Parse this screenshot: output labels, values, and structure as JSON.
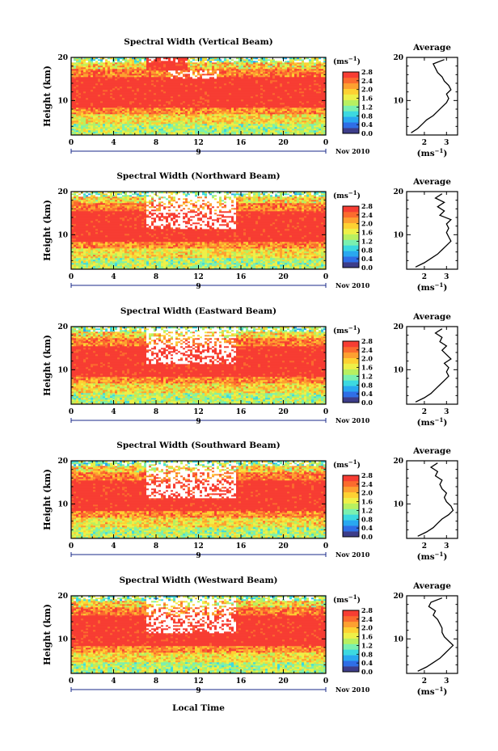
{
  "chart_data": {
    "type": "heatmap",
    "colors": {
      "palette": [
        "#3d3d8a",
        "#2f6ee6",
        "#29a8f0",
        "#3cd9e0",
        "#7af0b0",
        "#b8f060",
        "#eef048",
        "#fdd132",
        "#fda030",
        "#fb6b2e",
        "#f73d33"
      ],
      "average_line": "#000000"
    },
    "colorbar": {
      "unit": "(ms",
      "unit_exp": "−1",
      "unit_close": ")",
      "ticks": [
        "2.8",
        "2.4",
        "2.0",
        "1.6",
        "1.2",
        "0.8",
        "0.4",
        "0.0"
      ],
      "range": [
        0.0,
        2.8
      ]
    },
    "x_axis": {
      "ticks": [
        "0",
        "4",
        "8",
        "12",
        "16",
        "20",
        "0"
      ],
      "range": [
        0,
        24
      ],
      "day_label": "9",
      "date_label": "Nov 2010",
      "xlabel": "Local Time"
    },
    "y_axis": {
      "label": "Height (km)",
      "ticks": [
        "20",
        "10"
      ],
      "range": [
        2,
        20
      ]
    },
    "average_axis": {
      "ticks": [
        "2",
        "3"
      ],
      "unit": "(ms",
      "unit_exp": "−1",
      "unit_close": ")"
    },
    "panels": [
      {
        "title": "Spectral Width (Vertical Beam)",
        "average_title": "Average",
        "average_profile": {
          "height_km": [
            2.5,
            3.5,
            4.5,
            5.5,
            6.5,
            7.5,
            8.5,
            9.5,
            10.5,
            11.5,
            12.5,
            13.5,
            14.5,
            15.5,
            16.5,
            17.5,
            18.5,
            19.5
          ],
          "value": [
            1.4,
            1.7,
            1.9,
            2.1,
            2.4,
            2.6,
            2.8,
            3.0,
            3.1,
            3.0,
            3.2,
            3.1,
            2.9,
            2.8,
            2.6,
            2.5,
            2.4,
            2.9
          ]
        }
      },
      {
        "title": "Spectral Width (Northward Beam)",
        "average_title": "Average",
        "average_profile": {
          "height_km": [
            2.5,
            3.5,
            4.5,
            5.5,
            6.5,
            7.5,
            8.5,
            9.5,
            10.5,
            11.5,
            12.5,
            13.5,
            14.5,
            15.5,
            16.5,
            17.5,
            18.5,
            19.5
          ],
          "value": [
            1.6,
            2.0,
            2.3,
            2.6,
            2.8,
            3.0,
            3.2,
            3.1,
            3.0,
            3.1,
            3.0,
            3.2,
            2.7,
            2.9,
            2.6,
            2.9,
            2.5,
            2.8
          ]
        }
      },
      {
        "title": "Spectral Width (Eastward Beam)",
        "average_title": "Average",
        "average_profile": {
          "height_km": [
            2.5,
            3.5,
            4.5,
            5.5,
            6.5,
            7.5,
            8.5,
            9.5,
            10.5,
            11.5,
            12.5,
            13.5,
            14.5,
            15.5,
            16.5,
            17.5,
            18.5,
            19.5
          ],
          "value": [
            1.6,
            2.0,
            2.3,
            2.5,
            2.7,
            2.9,
            3.1,
            3.0,
            3.1,
            2.9,
            3.2,
            3.0,
            2.8,
            3.0,
            2.7,
            2.8,
            2.5,
            2.8
          ]
        }
      },
      {
        "title": "Spectral Width (Southward Beam)",
        "average_title": "Average",
        "average_profile": {
          "height_km": [
            2.5,
            3.5,
            4.5,
            5.5,
            6.5,
            7.5,
            8.5,
            9.5,
            10.5,
            11.5,
            12.5,
            13.5,
            14.5,
            15.5,
            16.5,
            17.5,
            18.5,
            19.5
          ],
          "value": [
            1.7,
            2.1,
            2.4,
            2.6,
            2.8,
            3.1,
            3.3,
            3.2,
            3.0,
            2.9,
            3.0,
            2.8,
            2.7,
            2.8,
            2.5,
            2.6,
            2.3,
            2.6
          ]
        }
      },
      {
        "title": "Spectral Width (Westward Beam)",
        "average_title": "Average",
        "average_profile": {
          "height_km": [
            2.5,
            3.5,
            4.5,
            5.5,
            6.5,
            7.5,
            8.5,
            9.5,
            10.5,
            11.5,
            12.5,
            13.5,
            14.5,
            15.5,
            16.5,
            17.5,
            18.5,
            19.5
          ],
          "value": [
            1.7,
            2.1,
            2.4,
            2.7,
            2.9,
            3.1,
            3.3,
            3.1,
            2.9,
            2.8,
            2.8,
            2.7,
            2.6,
            2.4,
            2.5,
            2.2,
            2.3,
            2.8
          ]
        }
      }
    ]
  }
}
